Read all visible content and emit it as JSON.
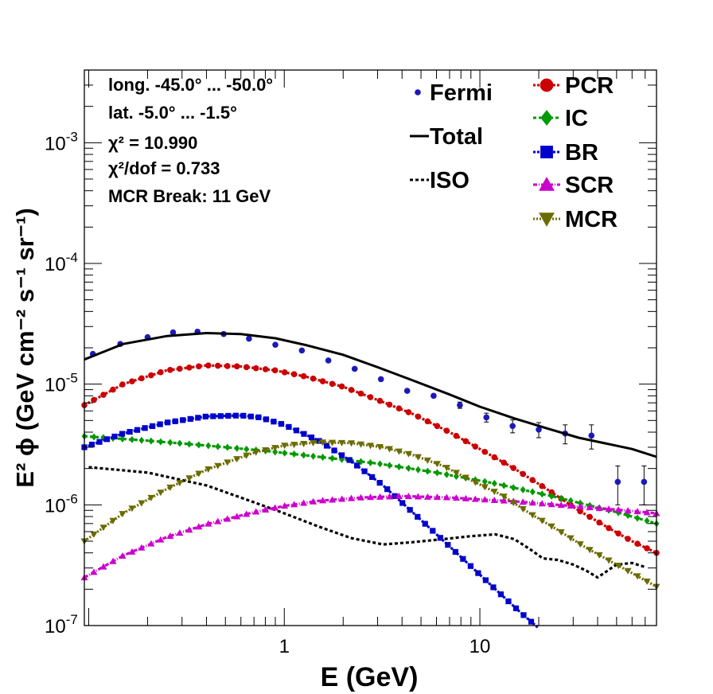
{
  "chart_data": {
    "type": "line",
    "xlabel": "E (GeV)",
    "ylabel": "E² ϕ (GeV cm⁻² s⁻¹ sr⁻¹)",
    "xscale": "log",
    "yscale": "log",
    "xlim": [
      0.095,
      80
    ],
    "ylim": [
      1e-07,
      0.004
    ],
    "x_tick_labels": [
      {
        "value": 1,
        "label": "1"
      },
      {
        "value": 10,
        "label": "10"
      }
    ],
    "y_tick_labels": [
      {
        "value": 1e-07,
        "base": "10",
        "exp": "-7"
      },
      {
        "value": 1e-06,
        "base": "10",
        "exp": "-6"
      },
      {
        "value": 1e-05,
        "base": "10",
        "exp": "-5"
      },
      {
        "value": 0.0001,
        "base": "10",
        "exp": "-4"
      },
      {
        "value": 0.001,
        "base": "10",
        "exp": "-3"
      }
    ],
    "annotations": [
      "long. -45.0° ... -50.0°",
      "lat. -5.0° ... -1.5°",
      "χ² = 10.990",
      "χ²/dof = 0.733",
      "MCR Break: 11 GeV"
    ],
    "legend": {
      "placement": "top-right"
    },
    "series": [
      {
        "name": "Fermi",
        "style": "points",
        "color": "#1a1ab8",
        "marker": "circle",
        "x": [
          0.105,
          0.145,
          0.2,
          0.27,
          0.36,
          0.49,
          0.66,
          0.9,
          1.23,
          1.68,
          2.29,
          3.12,
          4.25,
          5.8,
          7.9,
          10.8,
          14.7,
          20.0,
          27.3,
          37.2,
          50.7,
          69.1
        ],
        "y": [
          1.78e-05,
          2.15e-05,
          2.45e-05,
          2.68e-05,
          2.72e-05,
          2.6e-05,
          2.38e-05,
          2.12e-05,
          1.9e-05,
          1.57e-05,
          1.34e-05,
          1.1e-05,
          8.8e-06,
          8e-06,
          6.7e-06,
          5.3e-06,
          4.5e-06,
          4.2e-06,
          3.9e-06,
          3.75e-06,
          1.55e-06,
          1.55e-06
        ],
        "err_lo": [
          0,
          0,
          0,
          0,
          0,
          0,
          0,
          0,
          0,
          0,
          0,
          0,
          0,
          0,
          4e-07,
          4.5e-07,
          5.5e-07,
          6e-07,
          7e-07,
          8.5e-07,
          5.5e-07,
          5.5e-07
        ],
        "err_hi": [
          0,
          0,
          0,
          0,
          0,
          0,
          0,
          0,
          0,
          0,
          0,
          0,
          0,
          0,
          4e-07,
          4.5e-07,
          5.5e-07,
          6e-07,
          7e-07,
          8.5e-07,
          5.5e-07,
          5.5e-07
        ]
      },
      {
        "name": "Total",
        "style": "line",
        "color": "#000000",
        "dash": "",
        "x": [
          0.095,
          0.15,
          0.25,
          0.4,
          0.6,
          0.9,
          1.3,
          2,
          3,
          4.5,
          7,
          10,
          15,
          22,
          32,
          45,
          60,
          80
        ],
        "y": [
          1.6e-05,
          2.15e-05,
          2.5e-05,
          2.65e-05,
          2.6e-05,
          2.4e-05,
          2.1e-05,
          1.75e-05,
          1.38e-05,
          1.08e-05,
          8.2e-06,
          6.5e-06,
          5.2e-06,
          4.3e-06,
          3.6e-06,
          3.2e-06,
          2.9e-06,
          2.5e-06
        ]
      },
      {
        "name": "ISO",
        "style": "line",
        "color": "#000000",
        "dash": "4,3",
        "x": [
          0.1,
          0.2,
          0.4,
          0.7,
          1,
          1.5,
          2.2,
          3.2,
          4.5,
          6.5,
          9,
          12,
          15,
          18,
          21,
          25,
          30,
          35,
          40,
          45,
          50,
          60,
          70
        ],
        "y": [
          2.05e-06,
          1.85e-06,
          1.45e-06,
          1.05e-06,
          8.5e-07,
          6.6e-07,
          5.3e-07,
          4.7e-07,
          4.9e-07,
          5.2e-07,
          5.5e-07,
          5.7e-07,
          5.2e-07,
          4.3e-07,
          3.6e-07,
          3.5e-07,
          3.2e-07,
          2.85e-07,
          2.5e-07,
          2.85e-07,
          3.2e-07,
          3.3e-07,
          3.05e-07
        ]
      },
      {
        "name": "PCR",
        "style": "linepoints",
        "color": "#cc0000",
        "dash": "3,2",
        "marker": "circle",
        "x": [
          0.095,
          0.15,
          0.25,
          0.4,
          0.6,
          0.9,
          1.3,
          2,
          3,
          4.5,
          7,
          10,
          15,
          22,
          32,
          45,
          60,
          80
        ],
        "y": [
          6.7e-06,
          1e-05,
          1.3e-05,
          1.43e-05,
          1.4e-05,
          1.3e-05,
          1.15e-05,
          9.5e-06,
          7.4e-06,
          5.7e-06,
          4e-06,
          2.9e-06,
          2e-06,
          1.35e-06,
          9e-07,
          6.5e-07,
          5e-07,
          4e-07
        ]
      },
      {
        "name": "IC",
        "style": "linepoints",
        "color": "#009900",
        "dash": "4,3",
        "marker": "diamond",
        "x": [
          0.095,
          0.2,
          0.4,
          0.8,
          1.5,
          3,
          6,
          12,
          25,
          50,
          80
        ],
        "y": [
          3.7e-06,
          3.4e-06,
          3.1e-06,
          2.8e-06,
          2.5e-06,
          2.2e-06,
          1.85e-06,
          1.5e-06,
          1.15e-06,
          8.7e-07,
          7e-07
        ]
      },
      {
        "name": "BR",
        "style": "linepoints",
        "color": "#0000cc",
        "dash": "3,2",
        "marker": "square",
        "x": [
          0.095,
          0.15,
          0.25,
          0.4,
          0.6,
          0.75,
          1,
          1.5,
          2.2,
          3.2,
          5,
          8,
          12,
          16,
          20
        ],
        "y": [
          3e-06,
          3.9e-06,
          4.8e-06,
          5.4e-06,
          5.5e-06,
          5.3e-06,
          4.6e-06,
          3.4e-06,
          2.3e-06,
          1.45e-06,
          7.5e-07,
          3.7e-07,
          2e-07,
          1.3e-07,
          9.5e-08
        ]
      },
      {
        "name": "SCR",
        "style": "linepoints",
        "color": "#cc00cc",
        "dash": "5,2,1,2",
        "marker": "triangle-up",
        "x": [
          0.095,
          0.15,
          0.25,
          0.4,
          0.7,
          1,
          1.5,
          2.5,
          4,
          7,
          10,
          15,
          25,
          40,
          60,
          80
        ],
        "y": [
          2.5e-07,
          3.8e-07,
          5.4e-07,
          6.9e-07,
          8.7e-07,
          9.8e-07,
          1.08e-06,
          1.15e-06,
          1.18e-06,
          1.15e-06,
          1.11e-06,
          1.07e-06,
          1e-06,
          9.4e-07,
          8.9e-07,
          8.5e-07
        ]
      },
      {
        "name": "MCR",
        "style": "linepoints",
        "color": "#6b6b00",
        "dash": "2,2",
        "marker": "triangle-down",
        "x": [
          0.095,
          0.15,
          0.25,
          0.4,
          0.7,
          1,
          1.5,
          2.2,
          3.2,
          4.5,
          6.5,
          9,
          13,
          18,
          25,
          35,
          50,
          80
        ],
        "y": [
          5e-07,
          8.5e-07,
          1.35e-06,
          1.95e-06,
          2.7e-06,
          3.1e-06,
          3.3e-06,
          3.25e-06,
          3e-06,
          2.6e-06,
          2.1e-06,
          1.6e-06,
          1.2e-06,
          8.5e-07,
          6.2e-07,
          4.4e-07,
          3.2e-07,
          2.1e-07
        ]
      }
    ]
  }
}
